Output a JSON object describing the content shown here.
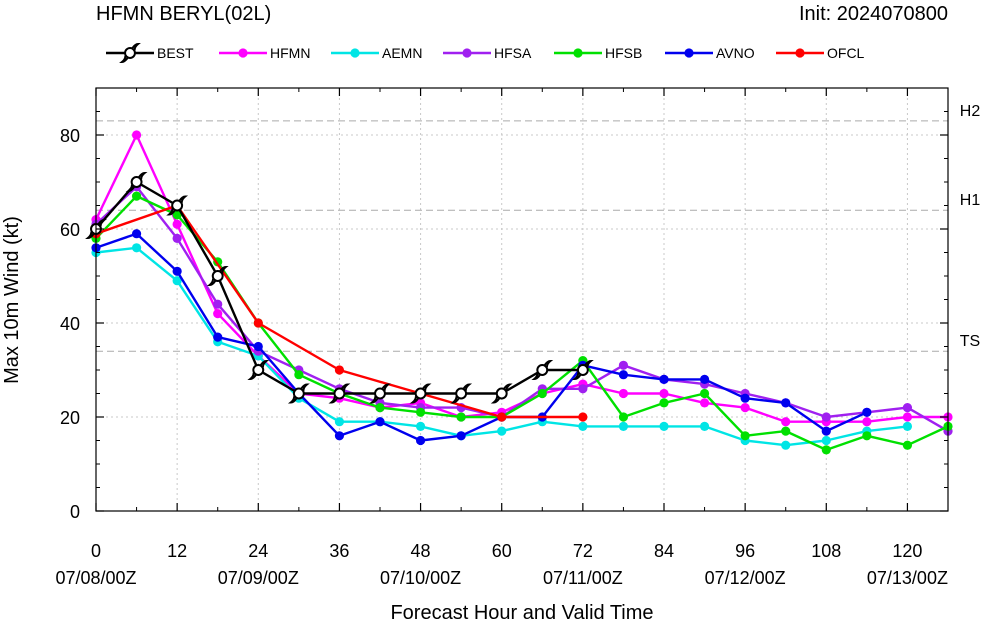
{
  "header": {
    "title": "HFMN BERYL(02L)",
    "init": "Init: 2024070800"
  },
  "chart_data": {
    "type": "line",
    "title": "HFMN BERYL(02L)",
    "xlabel": "Forecast Hour and Valid Time",
    "ylabel": "Max 10m Wind (kt)",
    "xlim": [
      0,
      126
    ],
    "ylim": [
      0,
      90
    ],
    "x_ticks": [
      0,
      12,
      24,
      36,
      48,
      60,
      72,
      84,
      96,
      108,
      120
    ],
    "x_date_ticks": [
      {
        "x": 0,
        "label": "07/08/00Z"
      },
      {
        "x": 24,
        "label": "07/09/00Z"
      },
      {
        "x": 48,
        "label": "07/10/00Z"
      },
      {
        "x": 72,
        "label": "07/11/00Z"
      },
      {
        "x": 96,
        "label": "07/12/00Z"
      },
      {
        "x": 120,
        "label": "07/13/00Z"
      }
    ],
    "y_ticks": [
      0,
      20,
      40,
      60,
      80
    ],
    "reference_lines": [
      {
        "label": "H2",
        "y": 83
      },
      {
        "label": "H1",
        "y": 64
      },
      {
        "label": "TS",
        "y": 34
      }
    ],
    "grid": true,
    "legend_position": "top",
    "series": [
      {
        "name": "BEST",
        "color": "#000000",
        "marker": "hurricane-symbol",
        "x": [
          0,
          6,
          12,
          18,
          24,
          30,
          36,
          42,
          48,
          54,
          60,
          66,
          72
        ],
        "y": [
          60,
          70,
          65,
          50,
          30,
          25,
          25,
          25,
          25,
          25,
          25,
          30,
          30
        ]
      },
      {
        "name": "HFMN",
        "color": "#ff00ff",
        "marker": "circle",
        "x": [
          0,
          6,
          12,
          18,
          24,
          30,
          36,
          42,
          48,
          54,
          60,
          66,
          72,
          78,
          84,
          90,
          96,
          102,
          108,
          114,
          120,
          126
        ],
        "y": [
          62,
          80,
          61,
          42,
          33,
          25,
          24,
          22,
          23,
          20,
          21,
          25,
          27,
          25,
          25,
          23,
          22,
          19,
          19,
          19,
          20,
          20
        ]
      },
      {
        "name": "AEMN",
        "color": "#00e5e5",
        "marker": "circle",
        "x": [
          0,
          6,
          12,
          18,
          24,
          30,
          36,
          42,
          48,
          54,
          60,
          66,
          72,
          78,
          84,
          90,
          96,
          102,
          108,
          114,
          120
        ],
        "y": [
          55,
          56,
          49,
          36,
          33,
          24,
          19,
          19,
          18,
          16,
          17,
          19,
          18,
          18,
          18,
          18,
          15,
          14,
          15,
          17,
          18
        ]
      },
      {
        "name": "HFSA",
        "color": "#a020f0",
        "marker": "circle",
        "x": [
          0,
          6,
          12,
          18,
          24,
          30,
          36,
          42,
          48,
          54,
          60,
          66,
          72,
          78,
          84,
          90,
          96,
          102,
          108,
          114,
          120,
          126
        ],
        "y": [
          61,
          69,
          58,
          44,
          34,
          30,
          26,
          23,
          22,
          22,
          20,
          26,
          26,
          31,
          28,
          27,
          25,
          23,
          20,
          21,
          22,
          17
        ]
      },
      {
        "name": "HFSB",
        "color": "#00e000",
        "marker": "circle",
        "x": [
          0,
          6,
          12,
          18,
          24,
          30,
          36,
          42,
          48,
          54,
          60,
          66,
          72,
          78,
          84,
          90,
          96,
          102,
          108,
          114,
          120,
          126
        ],
        "y": [
          58,
          67,
          63,
          53,
          40,
          29,
          25,
          22,
          21,
          20,
          20,
          25,
          32,
          20,
          23,
          25,
          16,
          17,
          13,
          16,
          14,
          18
        ]
      },
      {
        "name": "AVNO",
        "color": "#0000ee",
        "marker": "circle",
        "x": [
          0,
          6,
          12,
          18,
          24,
          30,
          36,
          42,
          48,
          54,
          60,
          66,
          72,
          78,
          84,
          90,
          96,
          102,
          108,
          114
        ],
        "y": [
          56,
          59,
          51,
          37,
          35,
          25,
          16,
          19,
          15,
          16,
          20,
          20,
          31,
          29,
          28,
          28,
          24,
          23,
          17,
          21
        ]
      },
      {
        "name": "OFCL",
        "color": "#ff0000",
        "marker": "circle",
        "x": [
          0,
          12,
          24,
          36,
          48,
          60,
          72
        ],
        "y": [
          59,
          65,
          40,
          30,
          25,
          20,
          20
        ]
      }
    ]
  }
}
